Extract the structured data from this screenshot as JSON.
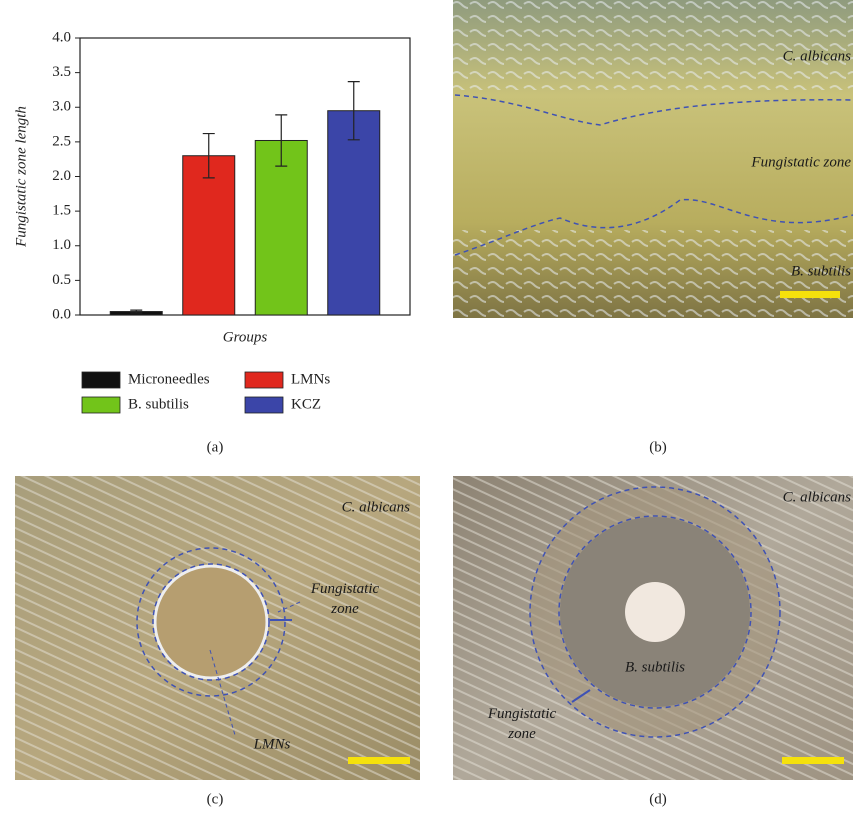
{
  "chart_data": {
    "type": "bar",
    "y_label": "Fungistatic zone length",
    "x_label": "Groups",
    "categories": [
      null
    ],
    "series": [
      {
        "name": "Microneedles",
        "color": "#111111",
        "values": [
          0.05
        ],
        "errors": [
          0.02
        ]
      },
      {
        "name": "LMNs",
        "color": "#e0281e",
        "values": [
          2.3
        ],
        "errors": [
          0.32
        ]
      },
      {
        "name": "B. subtilis",
        "color": "#72c41a",
        "values": [
          2.52
        ],
        "errors": [
          0.37
        ]
      },
      {
        "name": "KCZ",
        "color": "#3b45a8",
        "values": [
          2.95
        ],
        "errors": [
          0.42
        ]
      }
    ],
    "ylim": [
      0,
      4
    ],
    "yticks": [
      {
        "value": 0,
        "label": "0.0"
      },
      {
        "value": 0.5,
        "label": "0.5"
      },
      {
        "value": 1,
        "label": "1.0"
      },
      {
        "value": 1.5,
        "label": "1.5"
      },
      {
        "value": 2,
        "label": "2.0"
      },
      {
        "value": 2.5,
        "label": "2.5"
      },
      {
        "value": 3,
        "label": "3.0"
      },
      {
        "value": 3.5,
        "label": "3.5"
      },
      {
        "value": 4,
        "label": "4.0"
      }
    ]
  },
  "panel_labels": [
    "(a)",
    "(b)",
    "(c)",
    "(d)"
  ],
  "images": [
    {
      "annotations": [
        "C. albicans",
        "Fungistatic zone",
        "B. subtilis"
      ]
    },
    {
      "annotations": [
        "C. albicans",
        "Fungistatic zone",
        "LMNs"
      ]
    },
    {
      "annotations": [
        "C. albicans",
        "B. subtilis",
        "Fungistatic zone"
      ]
    }
  ]
}
